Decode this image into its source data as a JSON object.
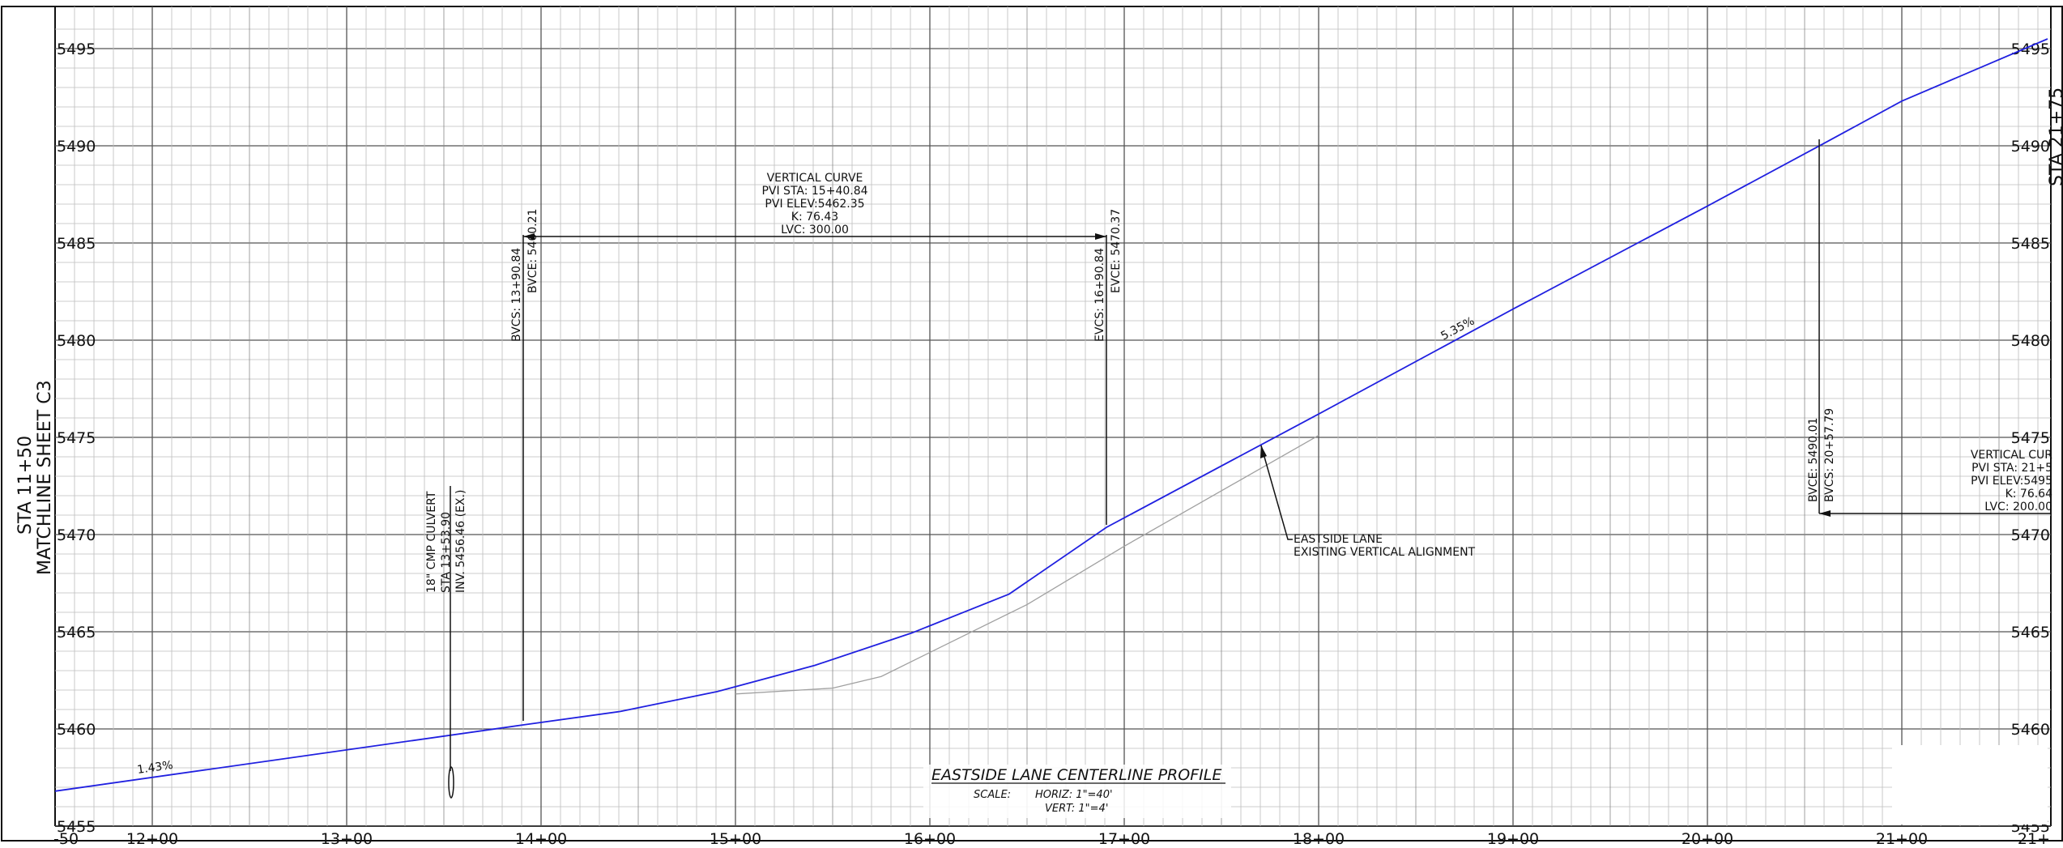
{
  "profile": {
    "x_station_labels": [
      "-50",
      "12+00",
      "13+00",
      "14+00",
      "15+00",
      "16+00",
      "17+00",
      "18+00",
      "19+00",
      "20+00",
      "21+00",
      "21+"
    ],
    "y_elevation_labels": [
      "5495",
      "5490",
      "5485",
      "5480",
      "5475",
      "5470",
      "5465",
      "5460",
      "5455"
    ],
    "matchline_left": [
      "STA 11+50",
      "MATCHLINE SHEET C3"
    ],
    "matchline_right": "STA 21+75",
    "grades": {
      "left": "1.43%",
      "right": "5.35%"
    },
    "vertical_curve_1": {
      "lines": [
        "VERTICAL CURVE",
        "PVI STA: 15+40.84",
        "PVI ELEV:5462.35",
        "K: 76.43",
        "LVC: 300.00"
      ],
      "bvc_sta": "BVCS: 13+90.84",
      "bvc_elev": "BVCE: 5460.21",
      "evc_sta": "EVCS: 16+90.84",
      "evc_elev": "EVCE: 5470.37"
    },
    "vertical_curve_2": {
      "lines": [
        "VERTICAL CUR",
        "PVI STA: 21+5",
        "PVI ELEV:5495",
        "K: 76.64",
        "LVC: 200.00"
      ],
      "bvc_elev": "BVCE: 5490.01",
      "bvc_sta": "BVCS: 20+57.79"
    },
    "culvert": [
      "18\" CMP CULVERT",
      "STA 13+53.90",
      "INV. 5456.46 (EX.)"
    ],
    "existing_note": [
      "EASTSIDE LANE",
      "EXISTING VERTICAL ALIGNMENT"
    ],
    "title": "EASTSIDE LANE CENTERLINE PROFILE",
    "scale_label": "SCALE:",
    "scale_horiz": "HORIZ: 1\"=40'",
    "scale_vert": "VERT: 1\"=4'"
  },
  "colors": {
    "proposed": "#2020e0",
    "existing": "#a0a0a0",
    "grid_major": "#555555",
    "grid_minor": "#bdbdbd"
  },
  "chart_data": {
    "type": "line",
    "xlabel": "",
    "ylabel": "",
    "x_range_sta_ft": [
      1150,
      2175
    ],
    "ylim": [
      5455,
      5495
    ],
    "series": [
      {
        "name": "",
        "x": [
          1150,
          1390.84,
          1440.84,
          1490.84,
          1540.84,
          1590.84,
          1640.84,
          1690.84,
          1800,
          1900,
          2000,
          2057.79,
          2100,
          2175
        ],
        "values": [
          5456.8,
          5460.21,
          5460.9,
          5461.93,
          5463.27,
          5464.94,
          5466.94,
          5470.37,
          5476.2,
          5481.6,
          5486.9,
          5490.01,
          5492.3,
          5495.5
        ]
      },
      {
        "name": "",
        "x": [
          1500,
          1550,
          1575,
          1650,
          1700,
          1800
        ],
        "values": [
          5461.8,
          5462.1,
          5462.7,
          5466.4,
          5469.4,
          5475.1
        ]
      }
    ]
  }
}
